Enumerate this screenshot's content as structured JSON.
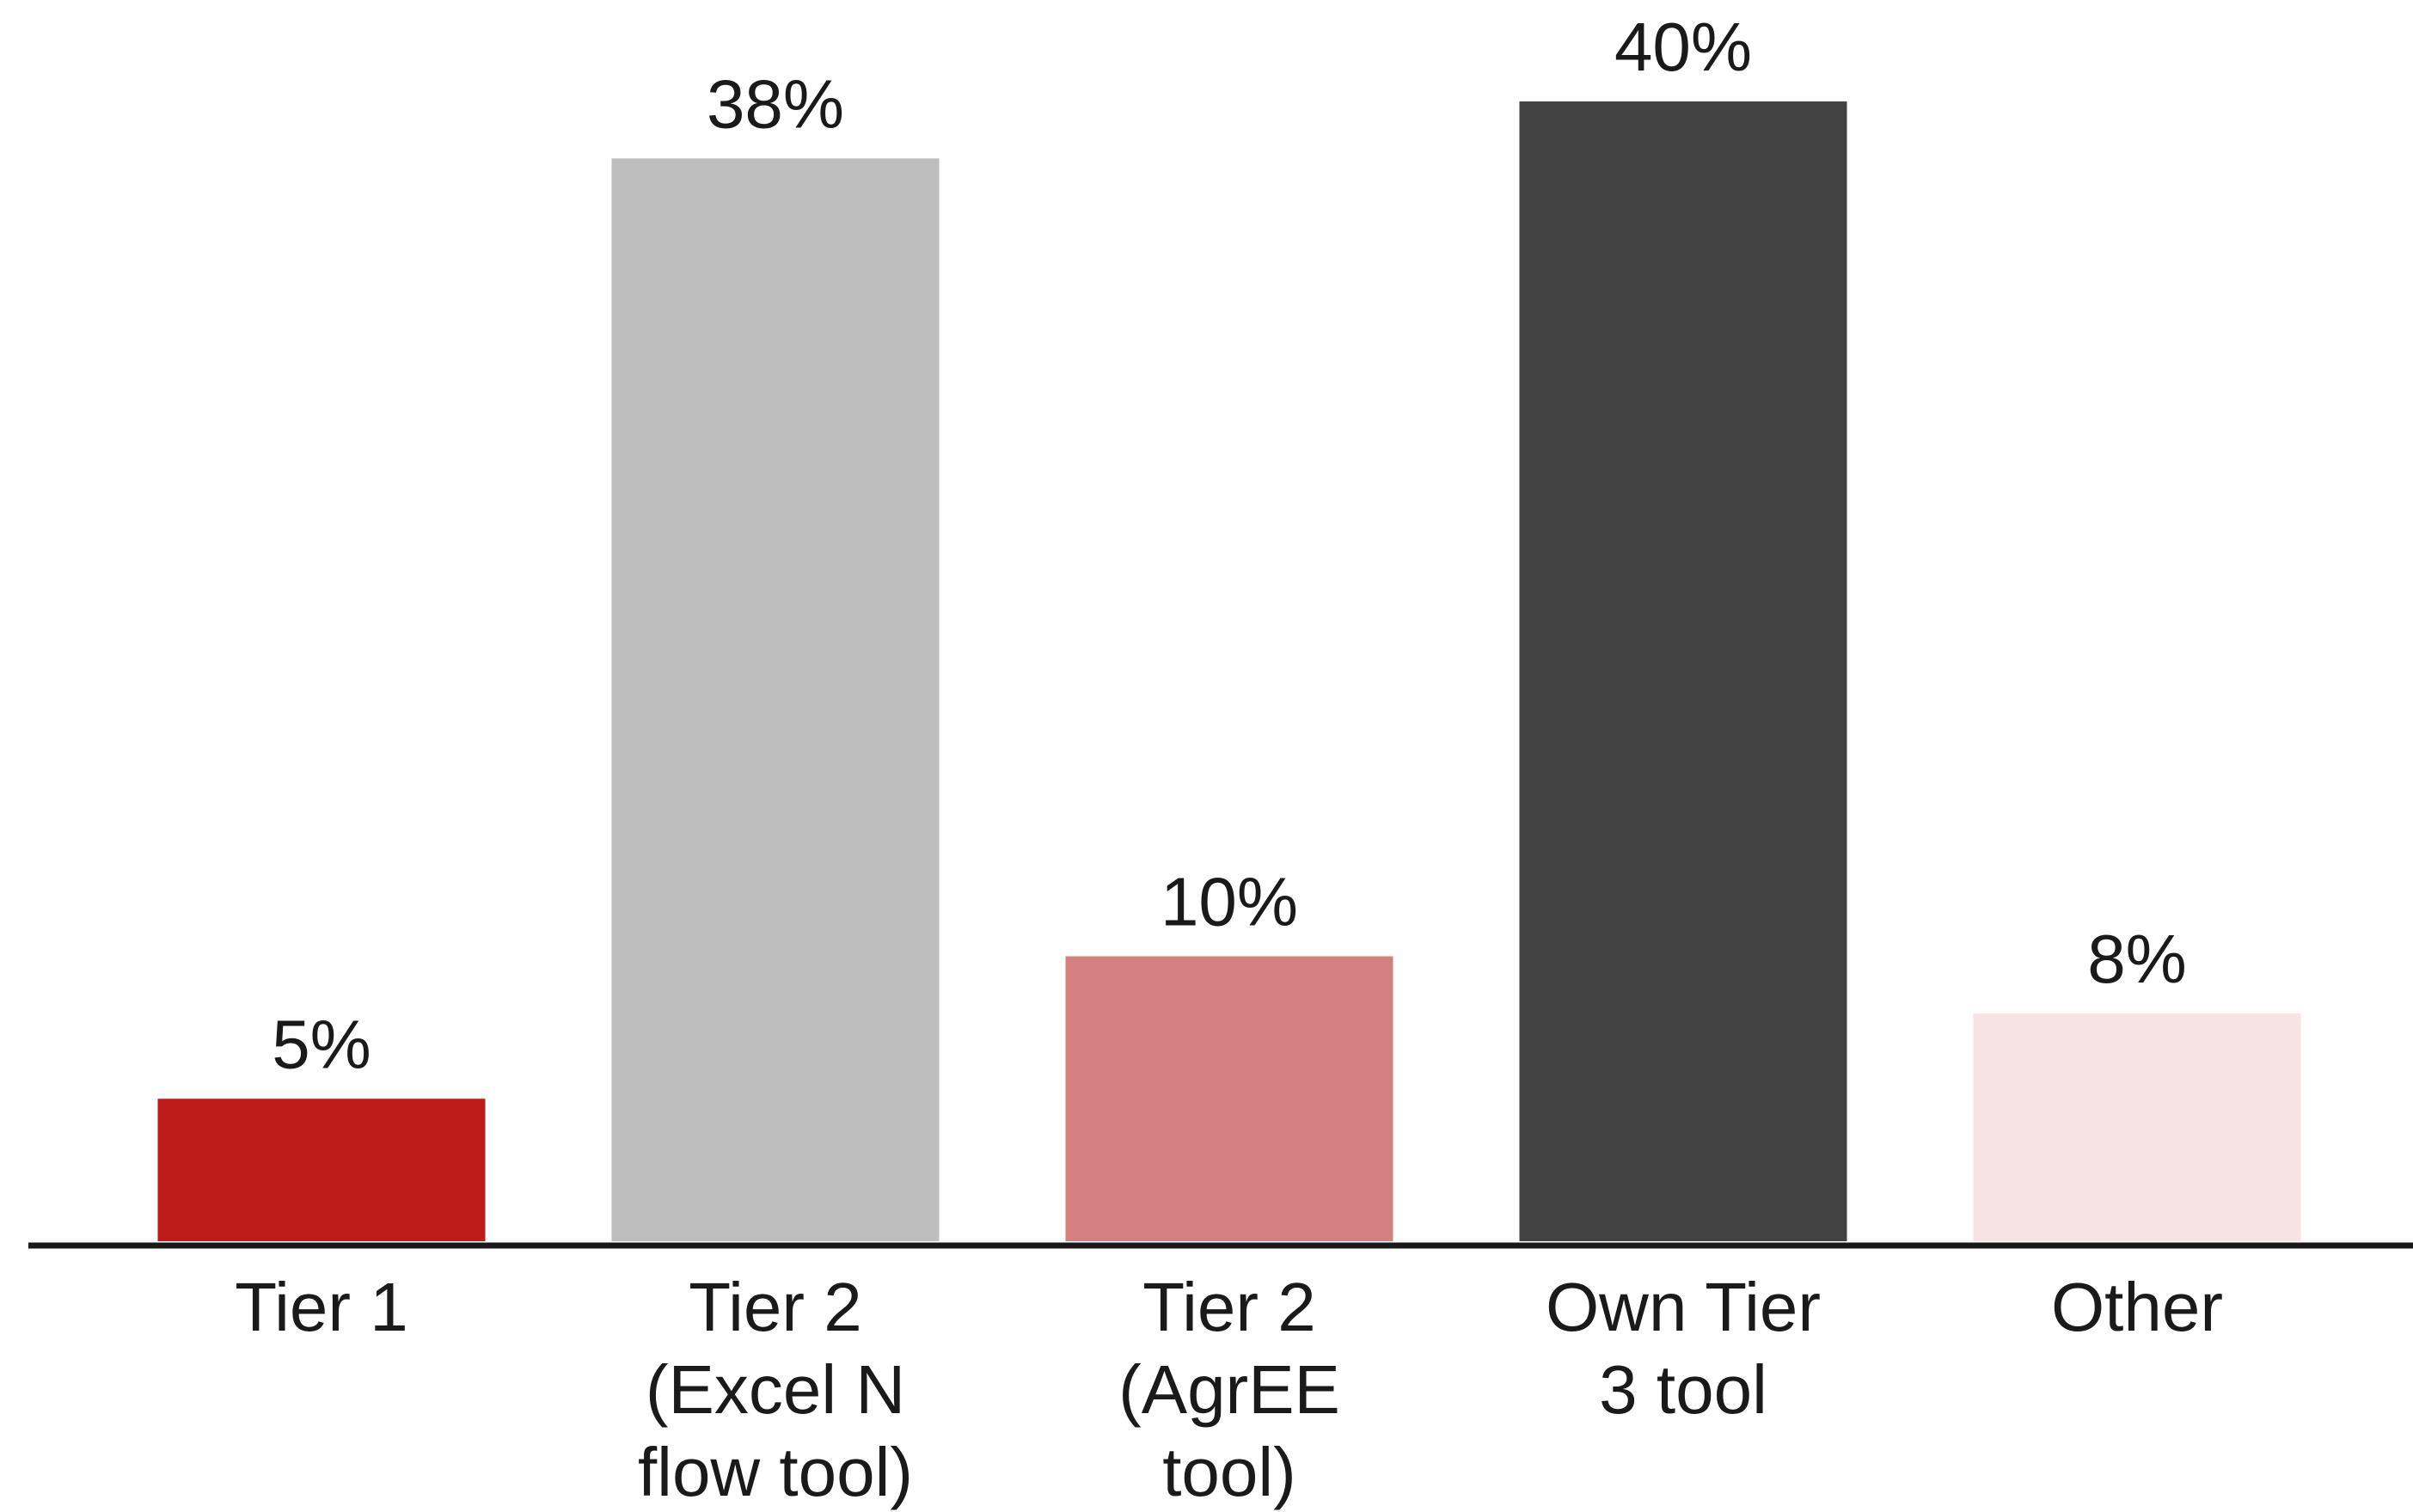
{
  "chart_data": {
    "type": "bar",
    "categories": [
      [
        "Tier 1"
      ],
      [
        "Tier 2",
        "(Excel N",
        "flow tool)"
      ],
      [
        "Tier 2",
        "(AgrEE",
        "tool)"
      ],
      [
        "Own Tier",
        "3 tool"
      ],
      [
        "Other"
      ]
    ],
    "values": [
      5,
      38,
      10,
      40,
      8
    ],
    "data_labels": [
      "5%",
      "38%",
      "10%",
      "40%",
      "8%"
    ],
    "colors": [
      "#be1a1a",
      "#bdbdbd",
      "#d58080",
      "#434343",
      "#f5e4e3"
    ],
    "unit": "%",
    "ylim": [
      0,
      40
    ],
    "grid": false,
    "legend": "none",
    "axis_color": "#1a1a1a"
  }
}
